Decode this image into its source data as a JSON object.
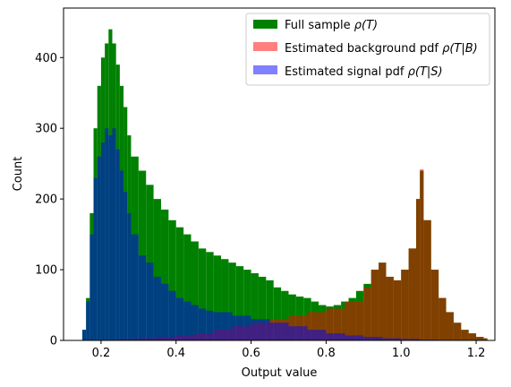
{
  "chart_data": {
    "type": "histogram",
    "xlabel": "Output value",
    "ylabel": "Count",
    "xlim": [
      0.1,
      1.25
    ],
    "ylim": [
      0,
      470
    ],
    "xticks": [
      0.2,
      0.4,
      0.6,
      0.8,
      1.0,
      1.2
    ],
    "xtick_labels": [
      "0.2",
      "0.4",
      "0.6",
      "0.8",
      "1.0",
      "1.2"
    ],
    "yticks": [
      0,
      100,
      200,
      300,
      400
    ],
    "ytick_labels": [
      "0",
      "100",
      "200",
      "300",
      "400"
    ],
    "legend_position": "top-right",
    "grid": false,
    "series": [
      {
        "name": "Full sample",
        "label_math": "ρ(T)",
        "color": "#008000",
        "points": [
          [
            0.15,
            15
          ],
          [
            0.16,
            60
          ],
          [
            0.17,
            180
          ],
          [
            0.18,
            300
          ],
          [
            0.19,
            360
          ],
          [
            0.2,
            400
          ],
          [
            0.21,
            420
          ],
          [
            0.22,
            440
          ],
          [
            0.23,
            420
          ],
          [
            0.24,
            390
          ],
          [
            0.25,
            360
          ],
          [
            0.26,
            330
          ],
          [
            0.27,
            290
          ],
          [
            0.28,
            260
          ],
          [
            0.3,
            240
          ],
          [
            0.32,
            220
          ],
          [
            0.34,
            200
          ],
          [
            0.36,
            185
          ],
          [
            0.38,
            170
          ],
          [
            0.4,
            160
          ],
          [
            0.42,
            150
          ],
          [
            0.44,
            140
          ],
          [
            0.46,
            130
          ],
          [
            0.48,
            125
          ],
          [
            0.5,
            120
          ],
          [
            0.52,
            115
          ],
          [
            0.54,
            110
          ],
          [
            0.56,
            105
          ],
          [
            0.58,
            100
          ],
          [
            0.6,
            95
          ],
          [
            0.62,
            90
          ],
          [
            0.64,
            85
          ],
          [
            0.66,
            75
          ],
          [
            0.68,
            70
          ],
          [
            0.7,
            65
          ],
          [
            0.72,
            62
          ],
          [
            0.74,
            60
          ],
          [
            0.76,
            55
          ],
          [
            0.78,
            50
          ],
          [
            0.8,
            48
          ],
          [
            0.82,
            50
          ],
          [
            0.84,
            55
          ],
          [
            0.86,
            60
          ],
          [
            0.88,
            70
          ],
          [
            0.9,
            80
          ],
          [
            0.92,
            100
          ],
          [
            0.94,
            110
          ],
          [
            0.96,
            90
          ],
          [
            0.98,
            85
          ],
          [
            1.0,
            100
          ],
          [
            1.02,
            130
          ],
          [
            1.04,
            200
          ],
          [
            1.05,
            240
          ],
          [
            1.06,
            170
          ],
          [
            1.08,
            100
          ],
          [
            1.1,
            60
          ],
          [
            1.12,
            40
          ],
          [
            1.14,
            25
          ],
          [
            1.16,
            15
          ],
          [
            1.18,
            10
          ],
          [
            1.2,
            5
          ],
          [
            1.22,
            3
          ]
        ]
      },
      {
        "name": "Estimated background pdf",
        "label_math": "ρ(T|B)",
        "color": "#ff0000",
        "points": [
          [
            0.15,
            0
          ],
          [
            0.2,
            0
          ],
          [
            0.25,
            2
          ],
          [
            0.3,
            3
          ],
          [
            0.35,
            5
          ],
          [
            0.4,
            7
          ],
          [
            0.45,
            10
          ],
          [
            0.5,
            15
          ],
          [
            0.55,
            20
          ],
          [
            0.6,
            25
          ],
          [
            0.65,
            30
          ],
          [
            0.7,
            35
          ],
          [
            0.75,
            40
          ],
          [
            0.8,
            45
          ],
          [
            0.85,
            55
          ],
          [
            0.9,
            75
          ],
          [
            0.92,
            100
          ],
          [
            0.94,
            110
          ],
          [
            0.96,
            90
          ],
          [
            0.98,
            85
          ],
          [
            1.0,
            100
          ],
          [
            1.02,
            130
          ],
          [
            1.04,
            200
          ],
          [
            1.05,
            242
          ],
          [
            1.06,
            170
          ],
          [
            1.08,
            100
          ],
          [
            1.1,
            60
          ],
          [
            1.12,
            40
          ],
          [
            1.14,
            25
          ],
          [
            1.16,
            15
          ],
          [
            1.18,
            10
          ],
          [
            1.2,
            5
          ],
          [
            1.22,
            3
          ]
        ]
      },
      {
        "name": "Estimated signal pdf",
        "label_math": "ρ(T|S)",
        "color": "#0000ff",
        "points": [
          [
            0.15,
            15
          ],
          [
            0.16,
            55
          ],
          [
            0.17,
            150
          ],
          [
            0.18,
            230
          ],
          [
            0.19,
            260
          ],
          [
            0.2,
            280
          ],
          [
            0.21,
            300
          ],
          [
            0.22,
            290
          ],
          [
            0.23,
            300
          ],
          [
            0.24,
            270
          ],
          [
            0.25,
            240
          ],
          [
            0.26,
            210
          ],
          [
            0.27,
            180
          ],
          [
            0.28,
            150
          ],
          [
            0.3,
            120
          ],
          [
            0.32,
            110
          ],
          [
            0.34,
            90
          ],
          [
            0.36,
            80
          ],
          [
            0.38,
            70
          ],
          [
            0.4,
            60
          ],
          [
            0.42,
            55
          ],
          [
            0.44,
            50
          ],
          [
            0.46,
            45
          ],
          [
            0.48,
            42
          ],
          [
            0.5,
            40
          ],
          [
            0.55,
            35
          ],
          [
            0.6,
            30
          ],
          [
            0.65,
            25
          ],
          [
            0.7,
            20
          ],
          [
            0.75,
            15
          ],
          [
            0.8,
            10
          ],
          [
            0.85,
            7
          ],
          [
            0.9,
            5
          ],
          [
            0.95,
            3
          ],
          [
            1.0,
            2
          ],
          [
            1.05,
            1
          ],
          [
            1.1,
            0
          ],
          [
            1.22,
            0
          ]
        ]
      }
    ]
  }
}
